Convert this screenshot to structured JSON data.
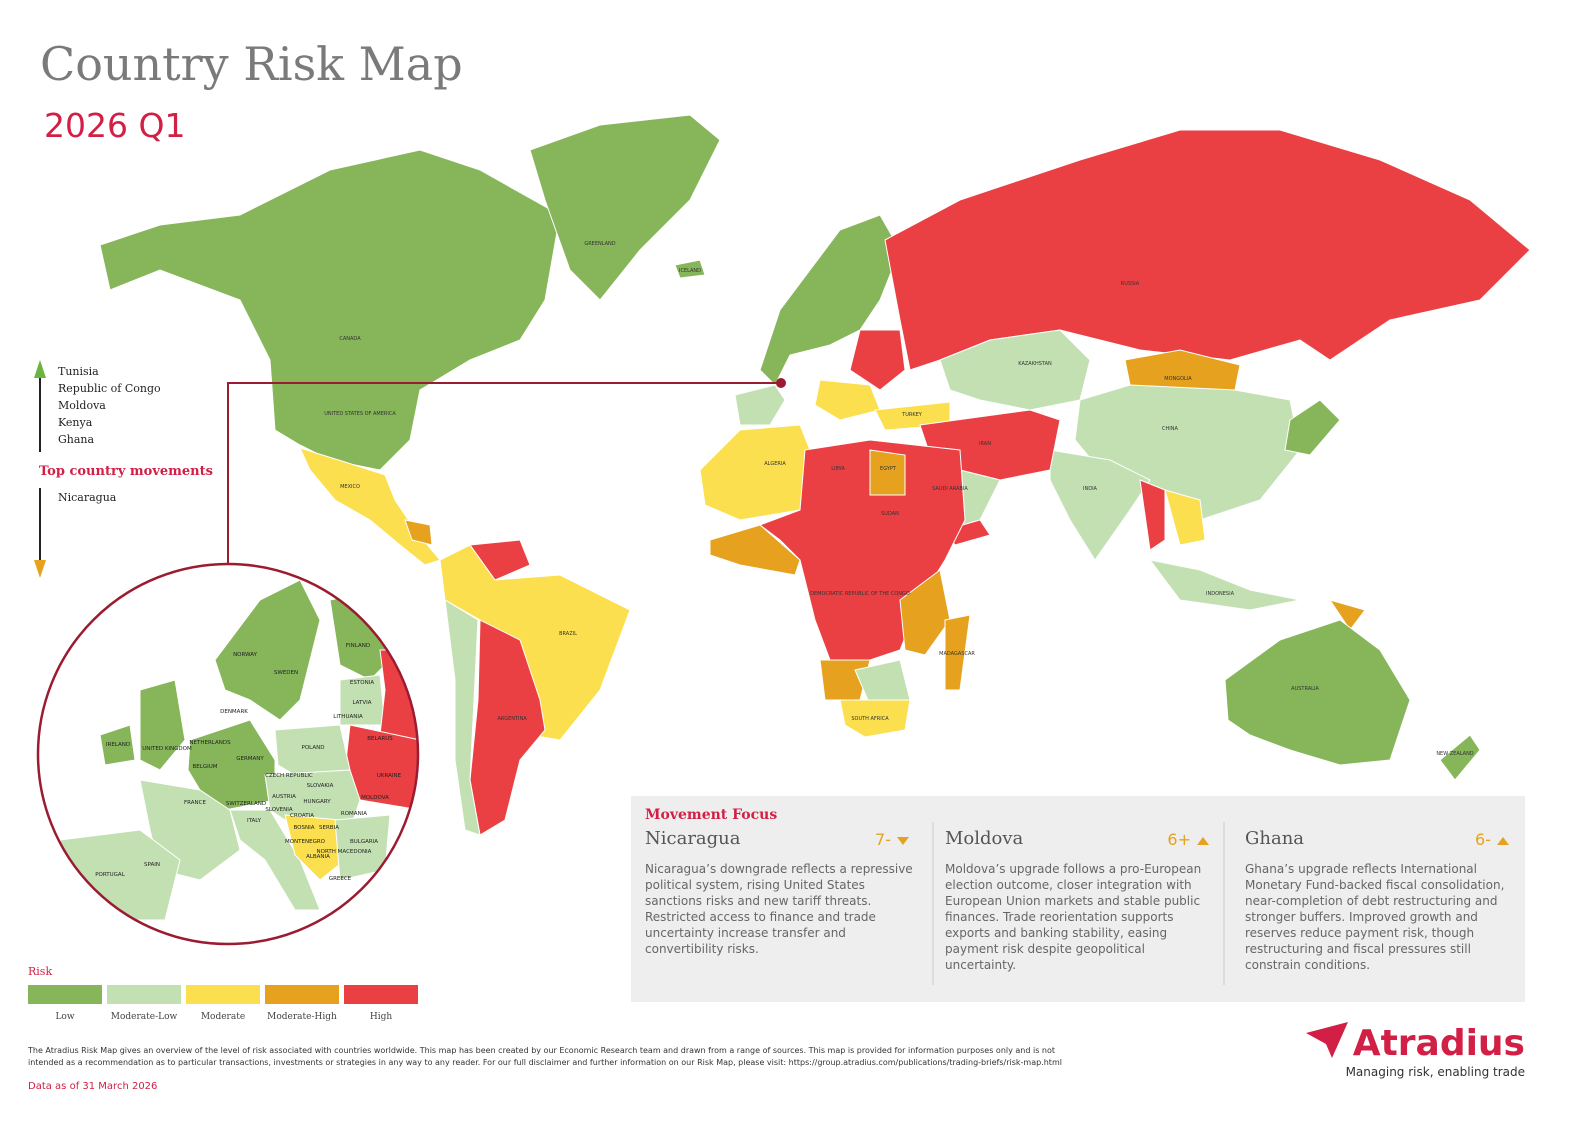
{
  "header": {
    "title": "Country Risk Map",
    "subtitle": "2026 Q1"
  },
  "movements": {
    "up": [
      "Tunisia",
      "Republic of Congo",
      "Moldova",
      "Kenya",
      "Ghana"
    ],
    "heading": "Top country movements",
    "down": [
      "Nicaragua"
    ]
  },
  "map_labels": [
    "GREENLAND",
    "ICELAND",
    "CANADA",
    "UNITED STATES OF AMERICA",
    "MEXICO",
    "BRAZIL",
    "ARGENTINA",
    "RUSSIA",
    "KAZAKHSTAN",
    "MONGOLIA",
    "CHINA",
    "INDIA",
    "AUSTRALIA",
    "SAUDI ARABIA",
    "IRAN",
    "EGYPT",
    "LIBYA",
    "ALGERIA",
    "SUDAN",
    "DEMOCRATIC REPUBLIC OF THE CONGO",
    "SOUTH AFRICA",
    "MADAGASCAR",
    "INDONESIA",
    "TURKEY",
    "NEW ZEALAND"
  ],
  "inset_labels": [
    "NORWAY",
    "SWEDEN",
    "FINLAND",
    "ESTONIA",
    "LATVIA",
    "LITHUANIA",
    "DENMARK",
    "IRELAND",
    "UNITED KINGDOM",
    "NETHERLANDS",
    "BELGIUM",
    "GERMANY",
    "POLAND",
    "BELARUS",
    "UKRAINE",
    "CZECH REPUBLIC",
    "SLOVAKIA",
    "AUSTRIA",
    "HUNGARY",
    "MOLDOVA",
    "ROMANIA",
    "FRANCE",
    "SWITZERLAND",
    "SLOVENIA",
    "CROATIA",
    "ITALY",
    "BOSNIA",
    "SERBIA",
    "MONTENEGRO",
    "ALBANIA",
    "NORTH MACEDONIA",
    "BULGARIA",
    "GREECE",
    "SPAIN",
    "PORTUGAL"
  ],
  "legend": {
    "title": "Risk",
    "items": [
      {
        "label": "Low",
        "color": "#86b55a"
      },
      {
        "label": "Moderate-Low",
        "color": "#c3e0b3"
      },
      {
        "label": "Moderate",
        "color": "#fbdf4e"
      },
      {
        "label": "Moderate-High",
        "color": "#e6a21f"
      },
      {
        "label": "High",
        "color": "#ea4043"
      }
    ]
  },
  "focus": {
    "title": "Movement Focus",
    "cards": [
      {
        "country": "Nicaragua",
        "rating": "7-",
        "direction": "down",
        "text": "Nicaragua’s downgrade reflects a repressive political system, rising United States sanctions risks and new tariff threats. Restricted access to finance and trade uncertainty increase transfer and convertibility risks."
      },
      {
        "country": "Moldova",
        "rating": "6+",
        "direction": "up",
        "text": "Moldova’s upgrade follows a pro-European election outcome, closer integration with European Union markets and stable public finances. Trade reorientation supports exports and banking stability, easing payment risk despite geopolitical uncertainty."
      },
      {
        "country": "Ghana",
        "rating": "6-",
        "direction": "up",
        "text": "Ghana’s upgrade reflects International Monetary Fund-backed fiscal consolidation, near-completion of debt restructuring and stronger buffers. Improved growth and reserves reduce payment risk, though restructuring and fiscal pressures still constrain conditions."
      }
    ]
  },
  "footer": {
    "disclaimer": "The Atradius Risk Map gives an overview of the level of risk associated with countries worldwide. This map has been created by our Economic Research team and drawn from a range of sources. This map is provided for information purposes only and is not intended as a recommendation as to particular transactions, investments or strategies in any way to any reader. For our full disclaimer and further information on our Risk Map, please visit: https://group.atradius.com/publications/trading-briefs/risk-map.html",
    "date": "Data as of 31 March 2026"
  },
  "brand": {
    "name": "Atradius",
    "tagline": "Managing risk, enabling trade"
  }
}
